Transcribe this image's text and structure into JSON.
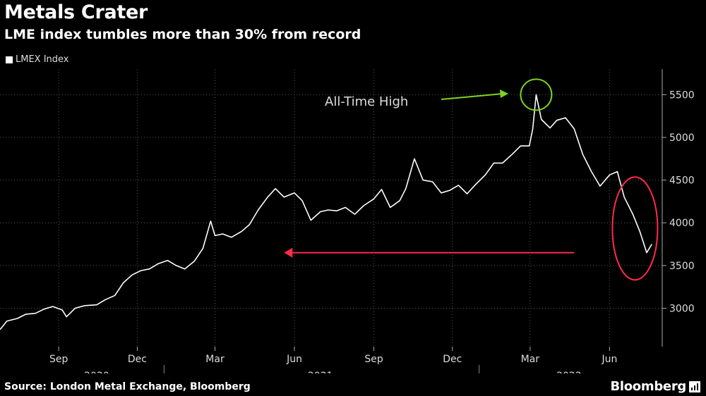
{
  "chart_data": {
    "type": "line",
    "title": "Metals Crater",
    "subtitle": "LME index tumbles more than 30% from record",
    "series": [
      {
        "name": "LMEX Index",
        "color": "#ffffff",
        "points": [
          [
            "2020-06-25",
            2750
          ],
          [
            "2020-07-03",
            2850
          ],
          [
            "2020-07-15",
            2880
          ],
          [
            "2020-07-25",
            2930
          ],
          [
            "2020-08-05",
            2940
          ],
          [
            "2020-08-15",
            2990
          ],
          [
            "2020-08-25",
            3020
          ],
          [
            "2020-09-05",
            2980
          ],
          [
            "2020-09-10",
            2900
          ],
          [
            "2020-09-20",
            3000
          ],
          [
            "2020-10-01",
            3030
          ],
          [
            "2020-10-15",
            3040
          ],
          [
            "2020-10-25",
            3100
          ],
          [
            "2020-11-05",
            3150
          ],
          [
            "2020-11-15",
            3300
          ],
          [
            "2020-11-25",
            3390
          ],
          [
            "2020-12-05",
            3440
          ],
          [
            "2020-12-15",
            3460
          ],
          [
            "2020-12-25",
            3520
          ],
          [
            "2021-01-05",
            3560
          ],
          [
            "2021-01-15",
            3500
          ],
          [
            "2021-01-25",
            3460
          ],
          [
            "2021-02-05",
            3550
          ],
          [
            "2021-02-15",
            3700
          ],
          [
            "2021-02-24",
            4020
          ],
          [
            "2021-03-01",
            3850
          ],
          [
            "2021-03-10",
            3870
          ],
          [
            "2021-03-20",
            3830
          ],
          [
            "2021-04-01",
            3900
          ],
          [
            "2021-04-10",
            3980
          ],
          [
            "2021-04-20",
            4150
          ],
          [
            "2021-05-01",
            4300
          ],
          [
            "2021-05-10",
            4400
          ],
          [
            "2021-05-20",
            4300
          ],
          [
            "2021-06-01",
            4350
          ],
          [
            "2021-06-10",
            4260
          ],
          [
            "2021-06-20",
            4030
          ],
          [
            "2021-07-01",
            4130
          ],
          [
            "2021-07-10",
            4150
          ],
          [
            "2021-07-20",
            4140
          ],
          [
            "2021-07-30",
            4180
          ],
          [
            "2021-08-10",
            4100
          ],
          [
            "2021-08-20",
            4200
          ],
          [
            "2021-09-01",
            4280
          ],
          [
            "2021-09-10",
            4390
          ],
          [
            "2021-09-20",
            4180
          ],
          [
            "2021-10-01",
            4260
          ],
          [
            "2021-10-08",
            4400
          ],
          [
            "2021-10-18",
            4750
          ],
          [
            "2021-10-28",
            4500
          ],
          [
            "2021-11-08",
            4480
          ],
          [
            "2021-11-18",
            4350
          ],
          [
            "2021-11-28",
            4380
          ],
          [
            "2021-12-08",
            4440
          ],
          [
            "2021-12-18",
            4340
          ],
          [
            "2021-12-28",
            4450
          ],
          [
            "2022-01-08",
            4560
          ],
          [
            "2022-01-18",
            4700
          ],
          [
            "2022-01-28",
            4700
          ],
          [
            "2022-02-08",
            4800
          ],
          [
            "2022-02-18",
            4900
          ],
          [
            "2022-02-28",
            4900
          ],
          [
            "2022-03-04",
            5100
          ],
          [
            "2022-03-08",
            5500
          ],
          [
            "2022-03-14",
            5210
          ],
          [
            "2022-03-24",
            5110
          ],
          [
            "2022-04-01",
            5200
          ],
          [
            "2022-04-11",
            5230
          ],
          [
            "2022-04-21",
            5100
          ],
          [
            "2022-05-01",
            4800
          ],
          [
            "2022-05-11",
            4600
          ],
          [
            "2022-05-21",
            4430
          ],
          [
            "2022-06-01",
            4560
          ],
          [
            "2022-06-10",
            4600
          ],
          [
            "2022-06-18",
            4300
          ],
          [
            "2022-06-28",
            4100
          ],
          [
            "2022-07-06",
            3900
          ],
          [
            "2022-07-14",
            3650
          ],
          [
            "2022-07-20",
            3750
          ]
        ]
      }
    ],
    "x_tick_labels": [
      {
        "label": "Sep",
        "date": "2020-09-01"
      },
      {
        "label": "Dec",
        "date": "2020-12-01"
      },
      {
        "label": "Mar",
        "date": "2021-03-01"
      },
      {
        "label": "Jun",
        "date": "2021-06-01"
      },
      {
        "label": "Sep",
        "date": "2021-09-01"
      },
      {
        "label": "Dec",
        "date": "2021-12-01"
      },
      {
        "label": "Mar",
        "date": "2022-03-01"
      },
      {
        "label": "Jun",
        "date": "2022-06-01"
      }
    ],
    "x_year_labels": [
      {
        "label": "2020",
        "date": "2020-10-15"
      },
      {
        "label": "2021",
        "date": "2021-07-01"
      },
      {
        "label": "2022",
        "date": "2022-04-15"
      }
    ],
    "x_year_dividers": [
      "2021-01-01",
      "2022-01-01"
    ],
    "xlim": [
      "2020-06-25",
      "2022-08-01"
    ],
    "y_ticks": [
      3000,
      3500,
      4000,
      4500,
      5000,
      5500
    ],
    "ylim": [
      2550,
      5800
    ],
    "grid": true,
    "y_axis_side": "right",
    "legend_position": "top-left",
    "annotations": [
      {
        "text": "All-Time High",
        "color": "#7ed321",
        "target": [
          "2022-03-08",
          5500
        ]
      },
      {
        "type": "arrow-left",
        "color": "#ff2b4a",
        "from": [
          "2022-04-21",
          3650
        ],
        "to": [
          "2021-05-20",
          3650
        ]
      },
      {
        "type": "ellipse",
        "color": "#ff2b4a",
        "center": [
          "2022-06-28",
          4000
        ]
      }
    ]
  },
  "source": "Source: London Metal Exchange, Bloomberg",
  "brand": "Bloomberg"
}
